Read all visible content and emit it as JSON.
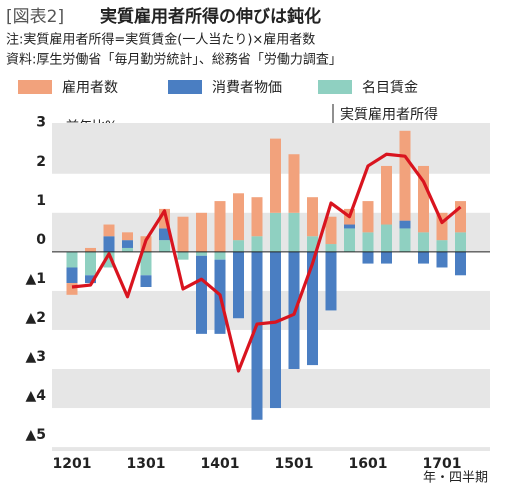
{
  "chart_data": {
    "type": "bar-line",
    "title_prefix": "[図表2]",
    "title": "実質雇用者所得の伸びは鈍化",
    "notes": [
      "注:実質雇用者所得=実質賃金(一人当たり)×雇用者数",
      "資料:厚生労働省「毎月勤労統計」、総務省「労働力調査」"
    ],
    "y_unit": "前年比%",
    "x_unit": "年・四半期",
    "annotation": "実質雇用者所得",
    "categories": [
      "1201",
      null,
      null,
      null,
      "1301",
      null,
      null,
      null,
      "1401",
      null,
      null,
      null,
      "1501",
      null,
      null,
      null,
      "1601",
      null,
      null,
      null,
      "1701",
      null
    ],
    "series": [
      {
        "name": "雇用者数",
        "color": "#f2a27c",
        "values": [
          -0.3,
          0.1,
          0.3,
          0.2,
          0.4,
          0.5,
          0.9,
          1.0,
          1.3,
          1.2,
          1.0,
          1.9,
          1.5,
          1.0,
          0.7,
          0.4,
          0.8,
          1.5,
          2.3,
          1.7,
          0.7,
          0.8
        ]
      },
      {
        "name": "消費者物価",
        "color": "#4a7ec2",
        "values": [
          -0.4,
          -0.2,
          0.4,
          0.2,
          -0.3,
          0.3,
          0.0,
          -2.0,
          -1.9,
          -1.7,
          -4.3,
          -4.0,
          -3.0,
          -2.9,
          -1.5,
          0.1,
          -0.3,
          -0.3,
          0.2,
          -0.3,
          -0.4,
          -0.6
        ]
      },
      {
        "name": "名目賃金",
        "color": "#8fd0c1",
        "values": [
          -0.4,
          -0.6,
          -0.4,
          0.1,
          -0.6,
          0.3,
          -0.2,
          -0.1,
          -0.2,
          0.3,
          0.4,
          1.0,
          1.0,
          0.4,
          0.2,
          0.6,
          0.5,
          0.7,
          0.6,
          0.5,
          0.3,
          0.5
        ]
      },
      {
        "name": "実質雇用者所得",
        "type": "line",
        "color": "#d9141f",
        "values": [
          -0.9,
          -0.85,
          -0.05,
          -1.15,
          0.3,
          1.05,
          -0.95,
          -0.7,
          -1.1,
          -3.05,
          -1.85,
          -1.8,
          -1.6,
          -0.3,
          1.25,
          0.9,
          2.2,
          2.5,
          2.45,
          1.8,
          0.75,
          1.15
        ]
      }
    ],
    "ylim": [
      -5.1,
      3.3
    ],
    "yticks": [
      {
        "value": 3,
        "label": "3"
      },
      2,
      1,
      0,
      {
        "value": -1,
        "label": "▲1"
      },
      {
        "value": -2,
        "label": "▲2"
      },
      {
        "value": -3,
        "label": "▲3"
      },
      {
        "value": -4,
        "label": "▲4"
      },
      {
        "value": -5,
        "label": "▲5"
      }
    ]
  }
}
